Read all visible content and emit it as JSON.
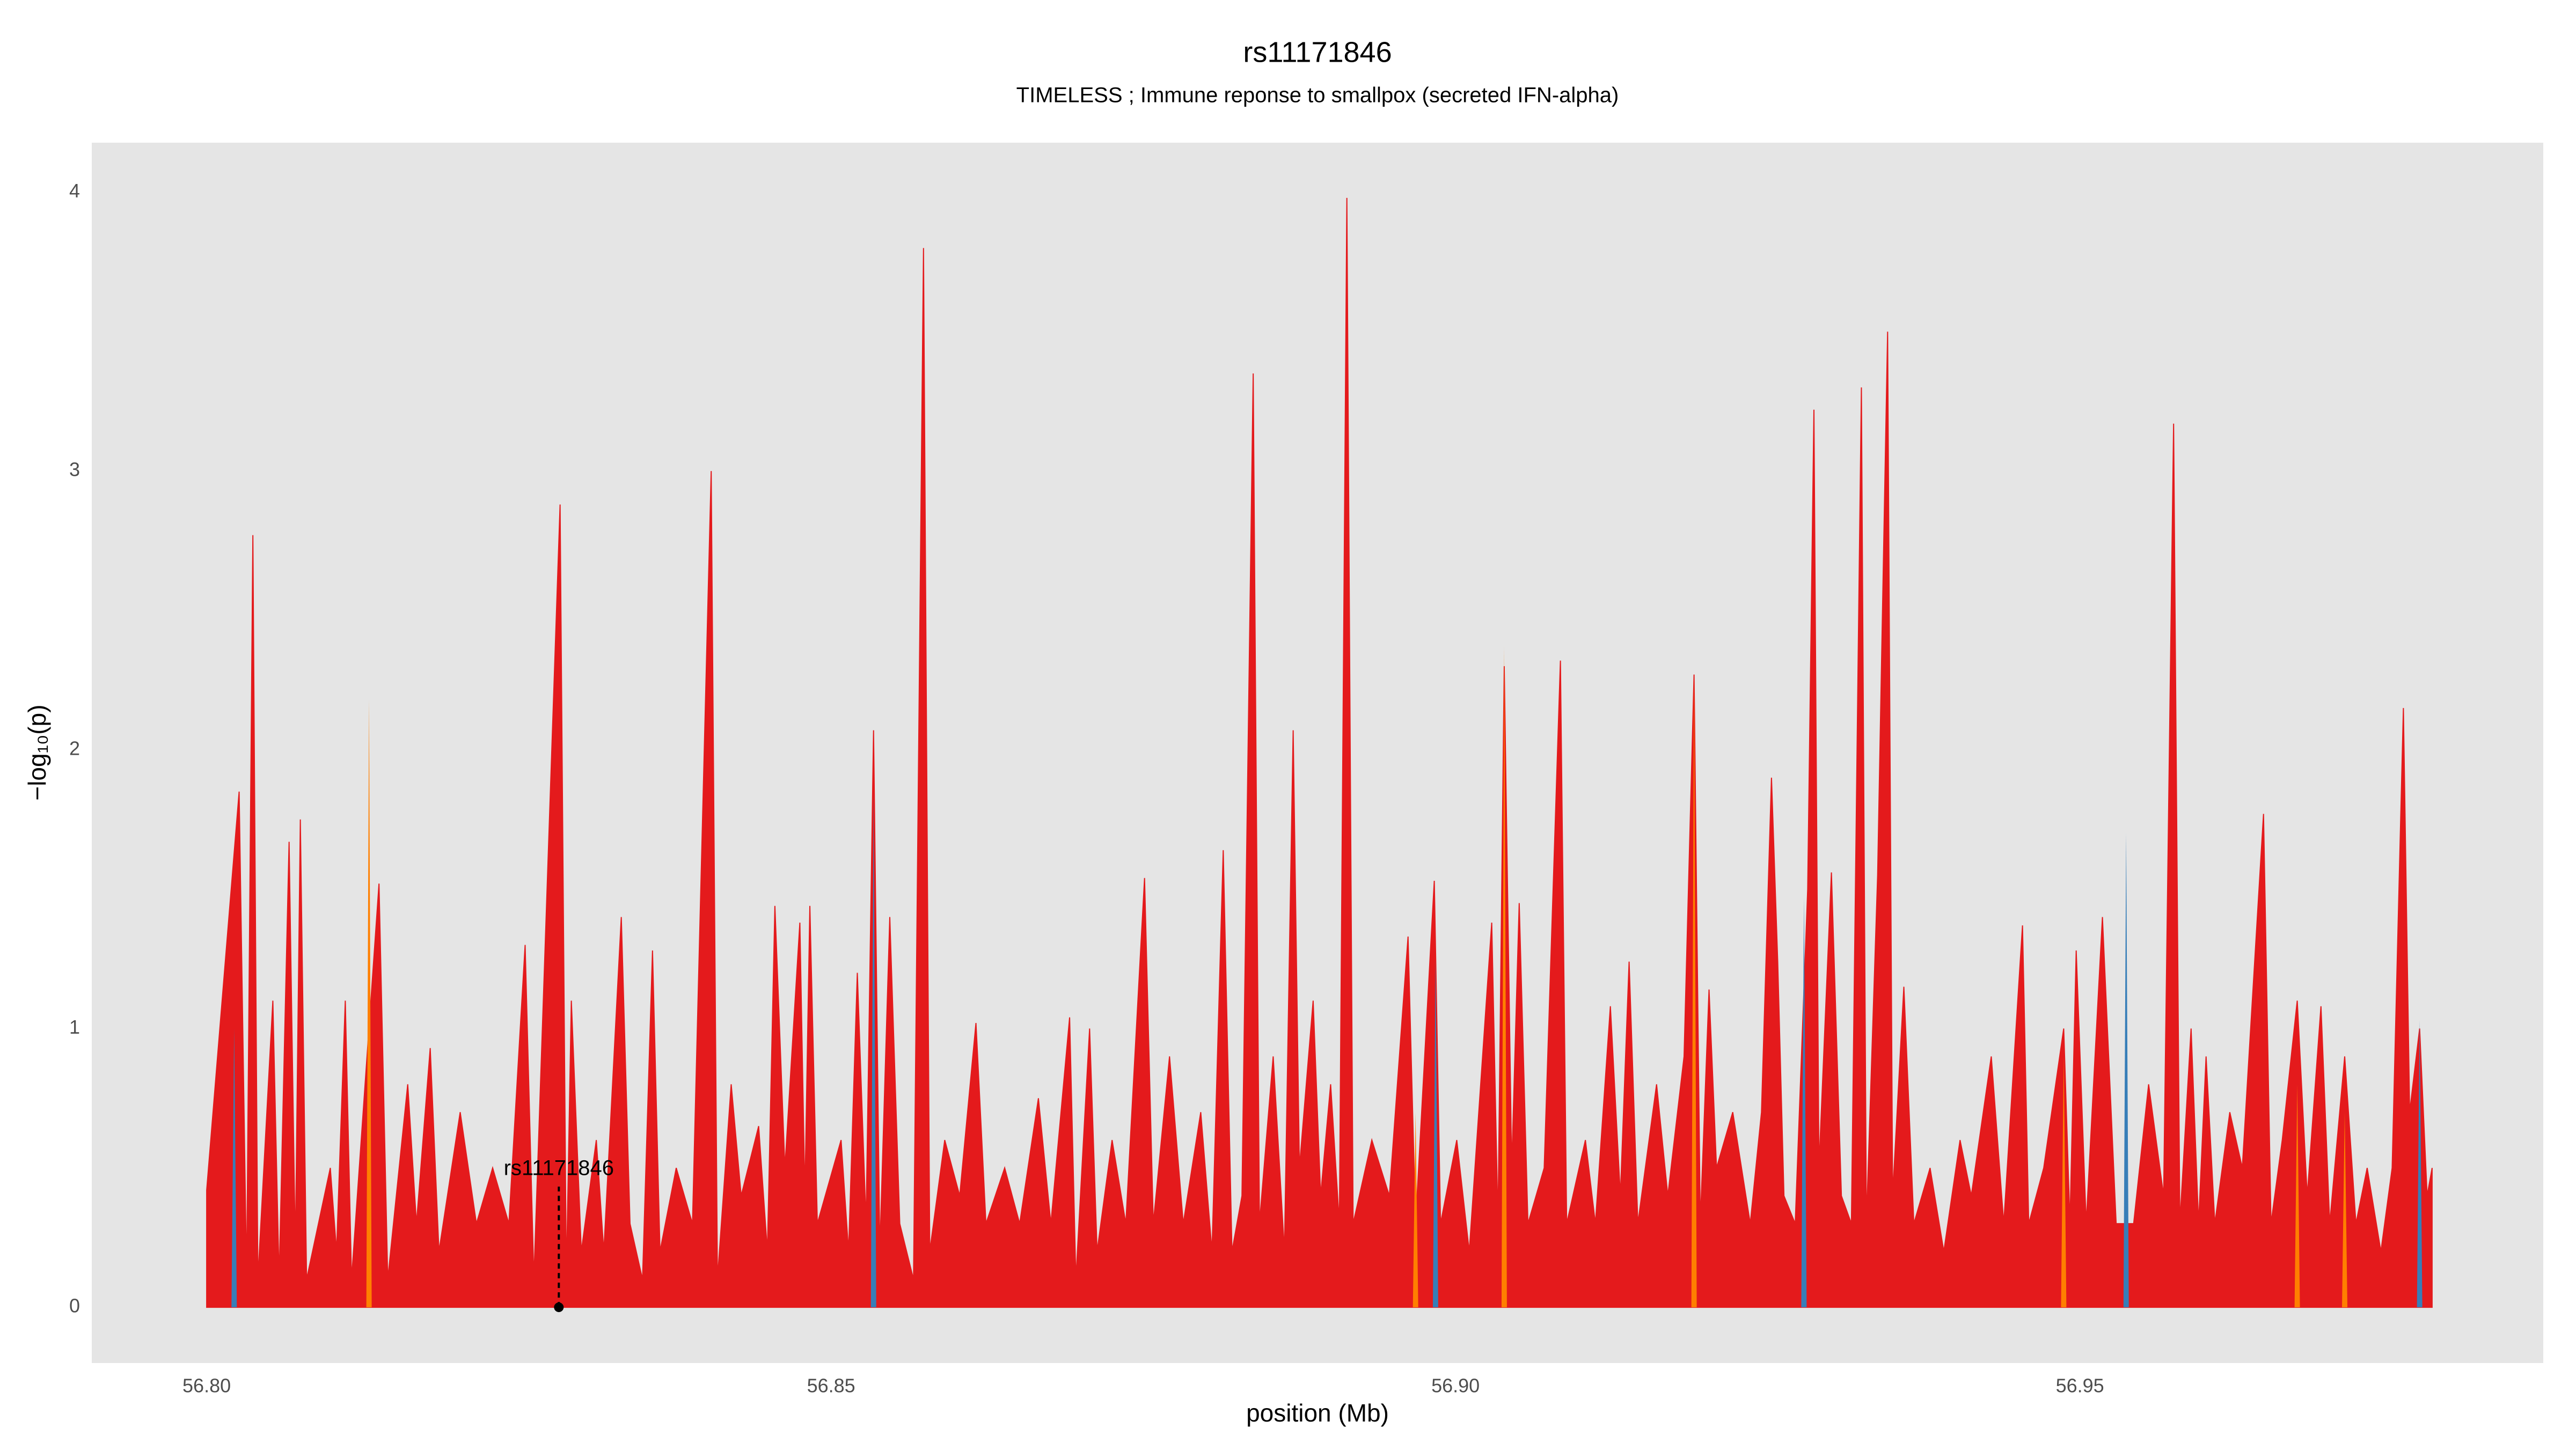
{
  "chart_data": {
    "type": "area",
    "title": "rs11171846",
    "subtitle": "TIMELESS ; Immune reponse to smallpox (secreted IFN-alpha)",
    "x_label": "position (Mb)",
    "y_label": "−log₁₀(p)",
    "xlim": [
      56.7908,
      56.9871
    ],
    "ylim": [
      -0.2,
      4.178
    ],
    "xticks": [
      {
        "value": 56.8,
        "label": "56.80"
      },
      56.85,
      {
        "value": 56.9,
        "label": "56.90"
      },
      56.95
    ],
    "yticks": [
      0,
      1,
      2,
      3,
      4
    ],
    "grid": true,
    "annotation": {
      "text": "rs11171846",
      "x": 56.8282,
      "y": 0
    },
    "series": [
      {
        "type": "area",
        "color": "#e41a1c",
        "x": [
          56.8,
          56.8026,
          56.8032,
          56.8037,
          56.8041,
          56.8053,
          56.8058,
          56.8066,
          56.8071,
          56.8075,
          56.808,
          56.8099,
          56.8104,
          56.8111,
          56.8116,
          56.8138,
          56.8145,
          56.8161,
          56.8168,
          56.8179,
          56.8186,
          56.8203,
          56.8216,
          56.8229,
          56.8242,
          56.8255,
          56.8262,
          56.8283,
          56.8288,
          56.8292,
          56.83,
          56.8312,
          56.8318,
          56.8332,
          56.8339,
          56.8349,
          56.8357,
          56.8363,
          56.8376,
          56.8389,
          56.8404,
          56.8409,
          56.842,
          56.8428,
          56.8442,
          56.8449,
          56.8455,
          56.8463,
          56.8475,
          56.8479,
          56.8483,
          56.8489,
          56.8508,
          56.8514,
          56.8521,
          56.8528,
          56.8534,
          56.8539,
          56.8547,
          56.8555,
          56.8566,
          56.8574,
          56.8579,
          56.8591,
          56.8603,
          56.8616,
          56.8624,
          56.8639,
          56.8651,
          56.8666,
          56.8676,
          56.8691,
          56.8696,
          56.8707,
          56.8713,
          56.8725,
          56.8736,
          56.8751,
          56.8758,
          56.8771,
          56.8782,
          56.8796,
          56.8805,
          56.8814,
          56.8821,
          56.8829,
          56.8838,
          56.8843,
          56.8854,
          56.8863,
          56.887,
          56.8875,
          56.8886,
          56.8892,
          56.89,
          56.8907,
          56.8913,
          56.8918,
          56.8933,
          56.8947,
          56.8962,
          56.8968,
          56.8983,
          56.8988,
          56.9001,
          56.9011,
          56.9029,
          56.9034,
          56.9039,
          56.9045,
          56.9051,
          56.9058,
          56.9071,
          56.9084,
          56.9089,
          56.9104,
          56.9112,
          56.9124,
          56.9132,
          56.9139,
          56.9146,
          56.9161,
          56.917,
          56.9183,
          56.9191,
          56.9196,
          56.9203,
          56.9209,
          56.9222,
          56.9236,
          56.9245,
          56.9253,
          56.9258,
          56.9263,
          56.9272,
          56.9282,
          56.9287,
          56.9291,
          56.9301,
          56.9309,
          56.9317,
          56.9325,
          56.9329,
          56.9338,
          56.9346,
          56.935,
          56.9359,
          56.9367,
          56.938,
          56.9391,
          56.9404,
          56.9413,
          56.9429,
          56.9439,
          56.9454,
          56.9459,
          56.9471,
          56.9487,
          56.9492,
          56.9497,
          56.9505,
          56.9518,
          56.9529,
          56.9543,
          56.9555,
          56.9567,
          56.9575,
          56.958,
          56.9589,
          56.9595,
          56.9601,
          56.9608,
          56.962,
          56.963,
          56.9647,
          56.9653,
          56.9662,
          56.9674,
          56.9682,
          56.9693,
          56.97,
          56.9712,
          56.9721,
          56.973,
          56.9741,
          56.975,
          56.9759,
          56.9764,
          56.9772,
          56.9778,
          56.9782
        ],
        "values": [
          0.42,
          1.85,
          0.1,
          2.77,
          0.1,
          1.1,
          0.1,
          1.67,
          0.2,
          1.75,
          0.1,
          0.5,
          0.2,
          1.1,
          0.1,
          1.52,
          0.1,
          0.8,
          0.3,
          0.93,
          0.2,
          0.7,
          0.3,
          0.5,
          0.3,
          1.3,
          0.1,
          2.88,
          0.1,
          1.1,
          0.2,
          0.6,
          0.2,
          1.4,
          0.3,
          0.1,
          1.28,
          0.2,
          0.5,
          0.3,
          3.0,
          0.1,
          0.8,
          0.4,
          0.65,
          0.2,
          1.44,
          0.5,
          1.38,
          0.4,
          1.44,
          0.3,
          0.6,
          0.2,
          1.2,
          0.3,
          2.07,
          0.2,
          1.4,
          0.3,
          0.1,
          3.8,
          0.2,
          0.6,
          0.4,
          1.02,
          0.3,
          0.5,
          0.3,
          0.75,
          0.3,
          1.04,
          0.1,
          1.0,
          0.2,
          0.6,
          0.3,
          1.54,
          0.3,
          0.9,
          0.3,
          0.7,
          0.2,
          1.64,
          0.2,
          0.4,
          3.35,
          0.3,
          0.9,
          0.2,
          2.07,
          0.5,
          1.1,
          0.4,
          0.8,
          0.3,
          3.98,
          0.3,
          0.6,
          0.4,
          1.33,
          0.3,
          1.53,
          0.3,
          0.6,
          0.2,
          1.38,
          0.3,
          2.3,
          0.5,
          1.45,
          0.3,
          0.5,
          2.32,
          0.3,
          0.6,
          0.3,
          1.08,
          0.4,
          1.24,
          0.3,
          0.8,
          0.4,
          0.9,
          2.27,
          0.3,
          1.14,
          0.5,
          0.7,
          0.3,
          0.7,
          1.9,
          1.24,
          0.4,
          0.3,
          1.5,
          3.22,
          0.5,
          1.56,
          0.4,
          0.3,
          3.3,
          0.3,
          1.55,
          3.5,
          0.4,
          1.15,
          0.3,
          0.5,
          0.2,
          0.6,
          0.4,
          0.9,
          0.3,
          1.37,
          0.3,
          0.5,
          1.0,
          0.3,
          1.28,
          0.3,
          1.4,
          0.3,
          0.3,
          0.8,
          0.4,
          3.17,
          0.3,
          1.0,
          0.3,
          0.9,
          0.3,
          0.7,
          0.5,
          1.77,
          0.3,
          0.6,
          1.1,
          0.4,
          1.08,
          0.3,
          0.9,
          0.3,
          0.5,
          0.2,
          0.5,
          2.15,
          0.7,
          1.0,
          0.4,
          0.5
        ]
      },
      {
        "type": "spike",
        "color": "#ff7f00",
        "x": [
          56.813,
          56.8968,
          56.9039,
          56.9191,
          56.9487,
          56.9674,
          56.9712
        ],
        "values": [
          2.18,
          0.7,
          2.37,
          2.27,
          0.9,
          0.8,
          0.7
        ]
      },
      {
        "type": "spike",
        "color": "#377eb8",
        "x": [
          56.8022,
          56.8534,
          56.8984,
          56.9279,
          56.9537,
          56.9772
        ],
        "values": [
          1.0,
          1.85,
          1.25,
          1.47,
          1.7,
          1.03
        ]
      }
    ]
  }
}
